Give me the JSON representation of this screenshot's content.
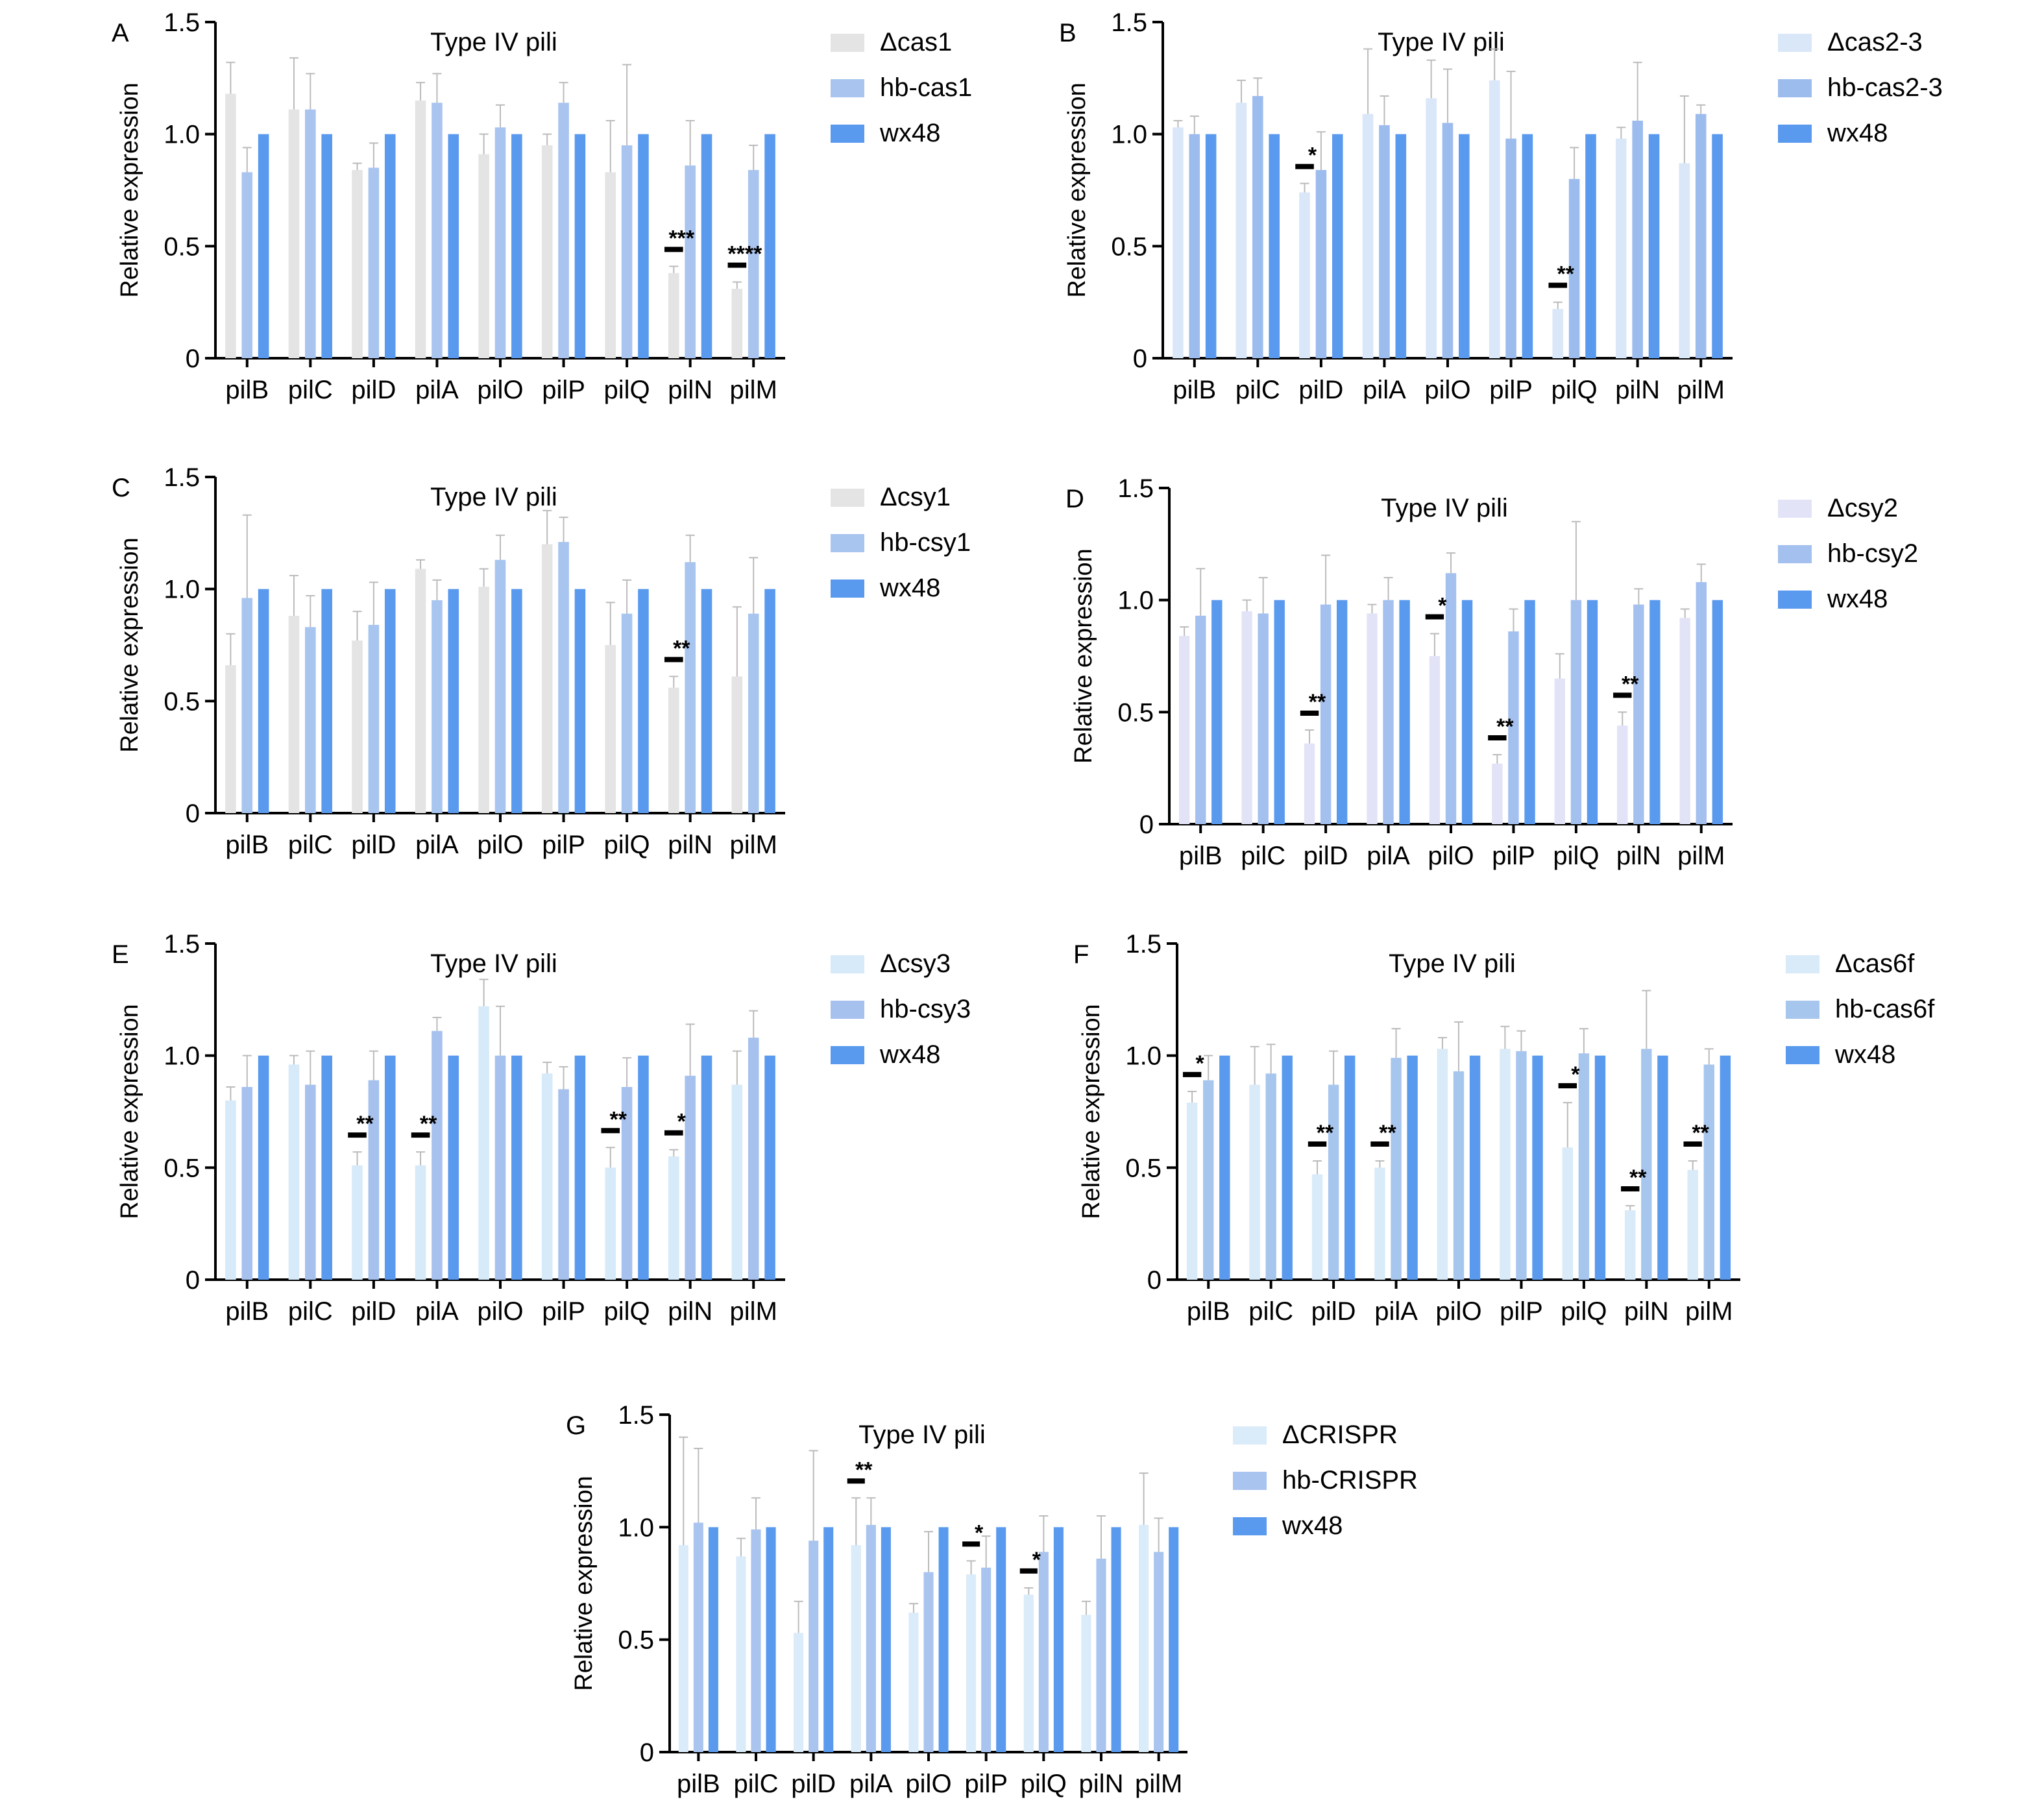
{
  "chart_data": [
    {
      "panel": "A",
      "type": "bar",
      "title": "Type IV pili",
      "xlabel": "",
      "ylabel": "Relative expression",
      "ylim": [
        0,
        1.5
      ],
      "yticks": [
        0,
        0.5,
        1.0,
        1.5
      ],
      "ytick_labels": [
        "0",
        "0.5",
        "1.0",
        "1.5"
      ],
      "categories": [
        "pilB",
        "pilC",
        "pilD",
        "pilA",
        "pilO",
        "pilP",
        "pilQ",
        "pilN",
        "pilM"
      ],
      "series": [
        {
          "name": "Δcas1",
          "values": [
            1.18,
            1.11,
            0.84,
            1.15,
            0.91,
            0.95,
            0.83,
            0.38,
            0.31
          ],
          "errors": [
            0.14,
            0.23,
            0.03,
            0.08,
            0.09,
            0.05,
            0.23,
            0.03,
            0.03
          ]
        },
        {
          "name": "hb-cas1",
          "values": [
            0.83,
            1.11,
            0.85,
            1.14,
            1.03,
            1.14,
            0.95,
            0.86,
            0.84
          ],
          "errors": [
            0.11,
            0.16,
            0.11,
            0.13,
            0.1,
            0.09,
            0.36,
            0.2,
            0.11
          ]
        },
        {
          "name": "wx48",
          "values": [
            1.0,
            1.0,
            1.0,
            1.0,
            1.0,
            1.0,
            1.0,
            1.0,
            1.0
          ],
          "errors": [
            0,
            0,
            0,
            0,
            0,
            0,
            0,
            0,
            0
          ]
        }
      ],
      "significance": [
        {
          "category": "pilN",
          "label": "***"
        },
        {
          "category": "pilM",
          "label": "****"
        }
      ]
    },
    {
      "panel": "B",
      "type": "bar",
      "title": "Type IV pili",
      "xlabel": "",
      "ylabel": "Relative expression",
      "ylim": [
        0,
        1.5
      ],
      "yticks": [
        0,
        0.5,
        1.0,
        1.5
      ],
      "ytick_labels": [
        "0",
        "0.5",
        "1.0",
        "1.5"
      ],
      "categories": [
        "pilB",
        "pilC",
        "pilD",
        "pilA",
        "pilO",
        "pilP",
        "pilQ",
        "pilN",
        "pilM"
      ],
      "series": [
        {
          "name": "Δcas2-3",
          "values": [
            1.03,
            1.14,
            0.74,
            1.09,
            1.16,
            1.24,
            0.22,
            0.98,
            0.87
          ],
          "errors": [
            0.03,
            0.1,
            0.04,
            0.29,
            0.17,
            0.14,
            0.03,
            0.05,
            0.3
          ]
        },
        {
          "name": "hb-cas2-3",
          "values": [
            1.0,
            1.17,
            0.84,
            1.04,
            1.05,
            0.98,
            0.8,
            1.06,
            1.09
          ],
          "errors": [
            0.08,
            0.08,
            0.17,
            0.13,
            0.24,
            0.3,
            0.14,
            0.26,
            0.04
          ]
        },
        {
          "name": "wx48",
          "values": [
            1.0,
            1.0,
            1.0,
            1.0,
            1.0,
            1.0,
            1.0,
            1.0,
            1.0
          ],
          "errors": [
            0,
            0,
            0,
            0,
            0,
            0,
            0,
            0,
            0
          ]
        }
      ],
      "significance": [
        {
          "category": "pilD",
          "label": "*"
        },
        {
          "category": "pilQ",
          "label": "**"
        }
      ]
    },
    {
      "panel": "C",
      "type": "bar",
      "title": "Type IV pili",
      "xlabel": "",
      "ylabel": "Relative expression",
      "ylim": [
        0,
        1.5
      ],
      "yticks": [
        0,
        0.5,
        1.0,
        1.5
      ],
      "ytick_labels": [
        "0",
        "0.5",
        "1.0",
        "1.5"
      ],
      "categories": [
        "pilB",
        "pilC",
        "pilD",
        "pilA",
        "pilO",
        "pilP",
        "pilQ",
        "pilN",
        "pilM"
      ],
      "series": [
        {
          "name": "Δcsy1",
          "values": [
            0.66,
            0.88,
            0.77,
            1.09,
            1.01,
            1.2,
            0.75,
            0.56,
            0.61
          ],
          "errors": [
            0.14,
            0.18,
            0.13,
            0.04,
            0.08,
            0.15,
            0.19,
            0.05,
            0.31
          ]
        },
        {
          "name": "hb-csy1",
          "values": [
            0.96,
            0.83,
            0.84,
            0.95,
            1.13,
            1.21,
            0.89,
            1.12,
            0.89
          ],
          "errors": [
            0.37,
            0.14,
            0.19,
            0.09,
            0.11,
            0.11,
            0.15,
            0.12,
            0.25
          ]
        },
        {
          "name": "wx48",
          "values": [
            1.0,
            1.0,
            1.0,
            1.0,
            1.0,
            1.0,
            1.0,
            1.0,
            1.0
          ],
          "errors": [
            0,
            0,
            0,
            0,
            0,
            0,
            0,
            0,
            0
          ]
        }
      ],
      "significance": [
        {
          "category": "pilN",
          "label": "**"
        }
      ]
    },
    {
      "panel": "D",
      "type": "bar",
      "title": "Type IV pili",
      "xlabel": "",
      "ylabel": "Relative expression",
      "ylim": [
        0,
        1.5
      ],
      "yticks": [
        0,
        0.5,
        1.0,
        1.5
      ],
      "ytick_labels": [
        "0",
        "0.5",
        "1.0",
        "1.5"
      ],
      "categories": [
        "pilB",
        "pilC",
        "pilD",
        "pilA",
        "pilO",
        "pilP",
        "pilQ",
        "pilN",
        "pilM"
      ],
      "series": [
        {
          "name": "Δcsy2",
          "values": [
            0.84,
            0.95,
            0.36,
            0.94,
            0.75,
            0.27,
            0.65,
            0.44,
            0.92
          ],
          "errors": [
            0.04,
            0.05,
            0.06,
            0.04,
            0.1,
            0.04,
            0.11,
            0.06,
            0.04
          ]
        },
        {
          "name": "hb-csy2",
          "values": [
            0.93,
            0.94,
            0.98,
            1.0,
            1.12,
            0.86,
            1.0,
            0.98,
            1.08
          ],
          "errors": [
            0.21,
            0.16,
            0.22,
            0.1,
            0.09,
            0.1,
            0.35,
            0.07,
            0.08
          ]
        },
        {
          "name": "wx48",
          "values": [
            1.0,
            1.0,
            1.0,
            1.0,
            1.0,
            1.0,
            1.0,
            1.0,
            1.0
          ],
          "errors": [
            0,
            0,
            0,
            0,
            0,
            0,
            0,
            0,
            0
          ]
        }
      ],
      "significance": [
        {
          "category": "pilD",
          "label": "**"
        },
        {
          "category": "pilO",
          "label": "*"
        },
        {
          "category": "pilP",
          "label": "**"
        },
        {
          "category": "pilN",
          "label": "**"
        }
      ]
    },
    {
      "panel": "E",
      "type": "bar",
      "title": "Type IV pili",
      "xlabel": "",
      "ylabel": "Relative expression",
      "ylim": [
        0,
        1.5
      ],
      "yticks": [
        0,
        0.5,
        1.0,
        1.5
      ],
      "ytick_labels": [
        "0",
        "0.5",
        "1.0",
        "1.5"
      ],
      "categories": [
        "pilB",
        "pilC",
        "pilD",
        "pilA",
        "pilO",
        "pilP",
        "pilQ",
        "pilN",
        "pilM"
      ],
      "series": [
        {
          "name": "Δcsy3",
          "values": [
            0.8,
            0.96,
            0.51,
            0.51,
            1.22,
            0.92,
            0.5,
            0.55,
            0.87
          ],
          "errors": [
            0.06,
            0.04,
            0.06,
            0.06,
            0.12,
            0.05,
            0.09,
            0.03,
            0.15
          ]
        },
        {
          "name": "hb-csy3",
          "values": [
            0.86,
            0.87,
            0.89,
            1.11,
            1.0,
            0.85,
            0.86,
            0.91,
            1.08
          ],
          "errors": [
            0.14,
            0.15,
            0.13,
            0.06,
            0.22,
            0.1,
            0.13,
            0.23,
            0.12
          ]
        },
        {
          "name": "wx48",
          "values": [
            1.0,
            1.0,
            1.0,
            1.0,
            1.0,
            1.0,
            1.0,
            1.0,
            1.0
          ],
          "errors": [
            0,
            0,
            0,
            0,
            0,
            0,
            0,
            0,
            0
          ]
        }
      ],
      "significance": [
        {
          "category": "pilD",
          "label": "**"
        },
        {
          "category": "pilA",
          "label": "**"
        },
        {
          "category": "pilQ",
          "label": "**"
        },
        {
          "category": "pilN",
          "label": "*"
        }
      ]
    },
    {
      "panel": "F",
      "type": "bar",
      "title": "Type IV pili",
      "xlabel": "",
      "ylabel": "Relative expression",
      "ylim": [
        0,
        1.5
      ],
      "yticks": [
        0,
        0.5,
        1.0,
        1.5
      ],
      "ytick_labels": [
        "0",
        "0.5",
        "1.0",
        "1.5"
      ],
      "categories": [
        "pilB",
        "pilC",
        "pilD",
        "pilA",
        "pilO",
        "pilP",
        "pilQ",
        "pilN",
        "pilM"
      ],
      "series": [
        {
          "name": "Δcas6f",
          "values": [
            0.79,
            0.87,
            0.47,
            0.5,
            1.03,
            1.03,
            0.59,
            0.31,
            0.49
          ],
          "errors": [
            0.05,
            0.17,
            0.06,
            0.03,
            0.05,
            0.1,
            0.2,
            0.02,
            0.04
          ]
        },
        {
          "name": "hb-cas6f",
          "values": [
            0.89,
            0.92,
            0.87,
            0.99,
            0.93,
            1.02,
            1.01,
            1.03,
            0.96
          ],
          "errors": [
            0.11,
            0.13,
            0.15,
            0.13,
            0.22,
            0.09,
            0.11,
            0.26,
            0.07
          ]
        },
        {
          "name": "wx48",
          "values": [
            1.0,
            1.0,
            1.0,
            1.0,
            1.0,
            1.0,
            1.0,
            1.0,
            1.0
          ],
          "errors": [
            0,
            0,
            0,
            0,
            0,
            0,
            0,
            0,
            0
          ]
        }
      ],
      "significance": [
        {
          "category": "pilB",
          "label": "*"
        },
        {
          "category": "pilD",
          "label": "**"
        },
        {
          "category": "pilA",
          "label": "**"
        },
        {
          "category": "pilQ",
          "label": "*"
        },
        {
          "category": "pilN",
          "label": "**"
        },
        {
          "category": "pilM",
          "label": "**"
        }
      ]
    },
    {
      "panel": "G",
      "type": "bar",
      "title": "Type IV pili",
      "xlabel": "",
      "ylabel": "Relative expression",
      "ylim": [
        0,
        1.5
      ],
      "yticks": [
        0,
        0.5,
        1.0,
        1.5
      ],
      "ytick_labels": [
        "0",
        "0.5",
        "1.0",
        "1.5"
      ],
      "categories": [
        "pilB",
        "pilC",
        "pilD",
        "pilA",
        "pilO",
        "pilP",
        "pilQ",
        "pilN",
        "pilM"
      ],
      "series": [
        {
          "name": "ΔCRISPR",
          "values": [
            0.92,
            0.87,
            0.53,
            0.92,
            0.62,
            0.79,
            0.7,
            0.61,
            1.01
          ],
          "errors": [
            0.48,
            0.08,
            0.14,
            0.21,
            0.04,
            0.06,
            0.03,
            0.06,
            0.23
          ]
        },
        {
          "name": "hb-CRISPR",
          "values": [
            1.02,
            0.99,
            0.94,
            1.01,
            0.8,
            0.82,
            0.89,
            0.86,
            0.89
          ],
          "errors": [
            0.33,
            0.14,
            0.4,
            0.12,
            0.18,
            0.14,
            0.16,
            0.19,
            0.15
          ]
        },
        {
          "name": "wx48",
          "values": [
            1.0,
            1.0,
            1.0,
            1.0,
            1.0,
            1.0,
            1.0,
            1.0,
            1.0
          ],
          "errors": [
            0,
            0,
            0,
            0,
            0,
            0,
            0,
            0,
            0
          ]
        }
      ],
      "significance": [
        {
          "category": "pilA",
          "label": "**"
        },
        {
          "category": "pilP",
          "label": "*"
        },
        {
          "category": "pilQ",
          "label": "*"
        }
      ]
    }
  ],
  "colors": {
    "A": [
      "#e4e4e4",
      "#a9c4ef",
      "#5a9aee"
    ],
    "B": [
      "#d9e7f8",
      "#9dbcee",
      "#5a9aee"
    ],
    "C": [
      "#e4e4e4",
      "#a7c5ef",
      "#5a9aee"
    ],
    "D": [
      "#e3e3f7",
      "#a4c0ef",
      "#5a9aee"
    ],
    "E": [
      "#d6eaf9",
      "#a6c1ee",
      "#5a9aee"
    ],
    "F": [
      "#d9eaf8",
      "#a7c6ee",
      "#5a9aee"
    ],
    "G": [
      "#daebf9",
      "#a9c4ee",
      "#5a9aee"
    ],
    "axis": "#000000",
    "error_bar": "#bbbbbb",
    "sig_line": "#000000"
  }
}
